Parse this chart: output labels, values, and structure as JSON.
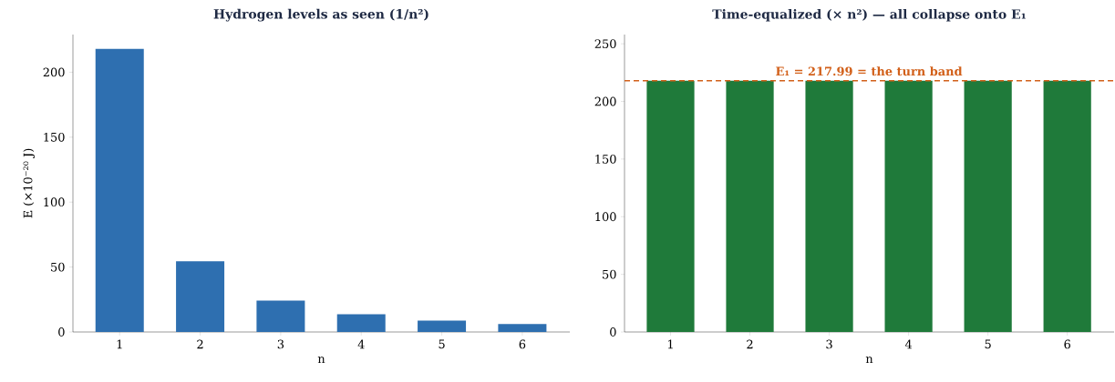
{
  "chart_data": [
    {
      "type": "bar",
      "title": "Hydrogen levels as seen (1/n²)",
      "xlabel": "n",
      "ylabel": "E (×10⁻²⁰ J)",
      "categories": [
        "1",
        "2",
        "3",
        "4",
        "5",
        "6"
      ],
      "values": [
        218,
        54.5,
        24.2,
        13.6,
        8.7,
        6.1
      ],
      "color": "#2e6fb0",
      "ylim": [
        0,
        229
      ],
      "yticks": [
        0,
        50,
        100,
        150,
        200
      ]
    },
    {
      "type": "bar",
      "title": "Time-equalized (× n²) — all collapse onto E₁",
      "xlabel": "n",
      "categories": [
        "1",
        "2",
        "3",
        "4",
        "5",
        "6"
      ],
      "values": [
        217.99,
        217.99,
        217.99,
        217.99,
        217.99,
        217.99
      ],
      "color": "#1f7a3a",
      "ylim": [
        0,
        258
      ],
      "yticks": [
        0,
        50,
        100,
        150,
        200,
        250
      ],
      "ref_lines": [
        {
          "axis": "y",
          "value": 217.99,
          "label": "E₁ = 217.99 = the turn band",
          "color": "#d2601a",
          "line_style": "dashed"
        }
      ]
    }
  ]
}
